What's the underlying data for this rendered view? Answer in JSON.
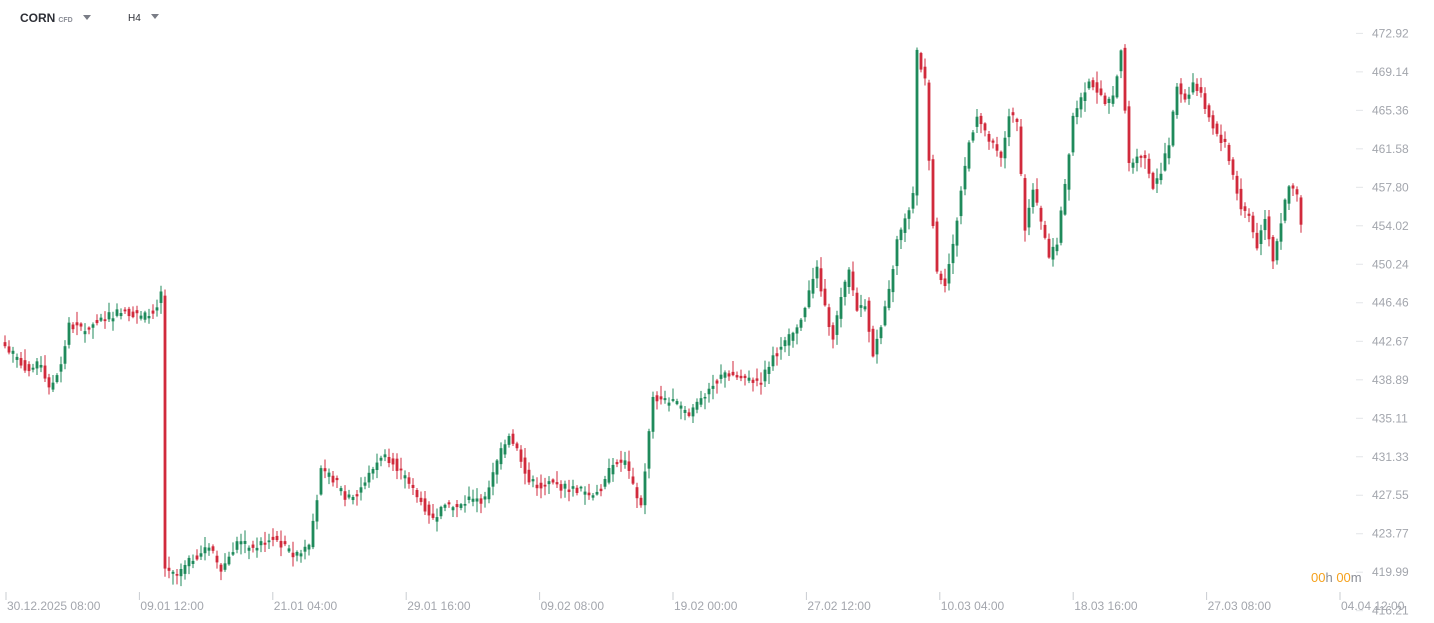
{
  "toolbar": {
    "symbol": "CORN",
    "symbol_type": "CFD",
    "timeframe": "H4"
  },
  "countdown": {
    "hours": "00",
    "h_unit": "h",
    "minutes": "00",
    "m_unit": "m"
  },
  "colors": {
    "up": "#1f8a5b",
    "down": "#d12a3c",
    "axis_text": "#a3a6ad",
    "grid": "#e3e5e8",
    "accent": "#f5a11c"
  },
  "chart_data": {
    "type": "candlestick",
    "y_ticks": [
      472.92,
      469.14,
      465.36,
      461.58,
      457.8,
      454.02,
      450.24,
      446.46,
      442.67,
      438.89,
      435.11,
      431.33,
      427.55,
      423.77,
      419.99,
      416.21
    ],
    "y_tick_labels": [
      "472.92",
      "469.14",
      "465.36",
      "461.58",
      "457.80",
      "454.02",
      "450.24",
      "446.46",
      "442.67",
      "438.89",
      "435.11",
      "431.33",
      "427.55",
      "423.77",
      "419.99",
      "416.21"
    ],
    "ylim": [
      415.0,
      476.2
    ],
    "x_tick_labels": [
      "30.12.2025 08:00",
      "09.01 12:00",
      "21.01 04:00",
      "29.01 16:00",
      "09.02 08:00",
      "19.02 00:00",
      "27.02 12:00",
      "10.03 04:00",
      "18.03 16:00",
      "27.03 08:00",
      "04.04 12:00"
    ],
    "anchors": [
      [
        0,
        442.2
      ],
      [
        6,
        439.8
      ],
      [
        9,
        440.5
      ],
      [
        11,
        437.8
      ],
      [
        14,
        440.5
      ],
      [
        16,
        444.2
      ],
      [
        20,
        443.8
      ],
      [
        26,
        445.2
      ],
      [
        30,
        445.8
      ],
      [
        34,
        445.0
      ],
      [
        37,
        445.5
      ],
      [
        39,
        447.2
      ],
      [
        40,
        420.0
      ],
      [
        43,
        419.6
      ],
      [
        47,
        421.4
      ],
      [
        51,
        422.5
      ],
      [
        54,
        420.2
      ],
      [
        58,
        423.0
      ],
      [
        62,
        422.3
      ],
      [
        67,
        423.5
      ],
      [
        72,
        421.6
      ],
      [
        76,
        422.7
      ],
      [
        79,
        429.8
      ],
      [
        82,
        429.2
      ],
      [
        85,
        427.5
      ],
      [
        88,
        427.8
      ],
      [
        91,
        429.5
      ],
      [
        94,
        431.5
      ],
      [
        97,
        431.0
      ],
      [
        101,
        428.5
      ],
      [
        104,
        427.0
      ],
      [
        107,
        425.2
      ],
      [
        110,
        426.8
      ],
      [
        113,
        426.2
      ],
      [
        117,
        427.5
      ],
      [
        120,
        427.0
      ],
      [
        123,
        430.8
      ],
      [
        126,
        433.6
      ],
      [
        129,
        431.2
      ],
      [
        131,
        428.9
      ],
      [
        134,
        428.5
      ],
      [
        137,
        428.6
      ],
      [
        141,
        428.2
      ],
      [
        144,
        428.1
      ],
      [
        146,
        427.5
      ],
      [
        149,
        428.2
      ],
      [
        152,
        430.6
      ],
      [
        155,
        430.8
      ],
      [
        157,
        428.3
      ],
      [
        159,
        426.5
      ],
      [
        162,
        437.2
      ],
      [
        165,
        436.8
      ],
      [
        168,
        436.5
      ],
      [
        171,
        435.3
      ],
      [
        174,
        437.2
      ],
      [
        177,
        438.5
      ],
      [
        180,
        439.6
      ],
      [
        183,
        439.2
      ],
      [
        186,
        438.8
      ],
      [
        189,
        438.8
      ],
      [
        192,
        441.2
      ],
      [
        195,
        442.5
      ],
      [
        198,
        443.8
      ],
      [
        201,
        447.5
      ],
      [
        203,
        449.8
      ],
      [
        205,
        445.8
      ],
      [
        207,
        443.2
      ],
      [
        209,
        446.8
      ],
      [
        211,
        449.5
      ],
      [
        213,
        445.8
      ],
      [
        215,
        446.5
      ],
      [
        217,
        441.5
      ],
      [
        219,
        444.0
      ],
      [
        221,
        447.5
      ],
      [
        223,
        452.5
      ],
      [
        225,
        454.5
      ],
      [
        227,
        457.0
      ],
      [
        228,
        471.0
      ],
      [
        230,
        468.2
      ],
      [
        231,
        460.8
      ],
      [
        232,
        454.2
      ],
      [
        233,
        449.5
      ],
      [
        235,
        448.5
      ],
      [
        237,
        452.0
      ],
      [
        239,
        457.5
      ],
      [
        241,
        462.2
      ],
      [
        243,
        465.0
      ],
      [
        245,
        463.0
      ],
      [
        247,
        461.8
      ],
      [
        249,
        460.5
      ],
      [
        251,
        465.0
      ],
      [
        253,
        464.0
      ],
      [
        255,
        453.8
      ],
      [
        257,
        457.5
      ],
      [
        259,
        454.3
      ],
      [
        261,
        450.8
      ],
      [
        263,
        452.5
      ],
      [
        265,
        457.8
      ],
      [
        267,
        464.8
      ],
      [
        269,
        466.5
      ],
      [
        271,
        468.5
      ],
      [
        273,
        467.3
      ],
      [
        275,
        466.0
      ],
      [
        277,
        466.5
      ],
      [
        279,
        471.5
      ],
      [
        281,
        459.8
      ],
      [
        283,
        461.0
      ],
      [
        285,
        460.5
      ],
      [
        287,
        458.0
      ],
      [
        289,
        459.5
      ],
      [
        291,
        462.0
      ],
      [
        293,
        467.8
      ],
      [
        295,
        466.5
      ],
      [
        297,
        468.0
      ],
      [
        299,
        466.8
      ],
      [
        301,
        464.8
      ],
      [
        303,
        463.0
      ],
      [
        305,
        462.0
      ],
      [
        307,
        459.0
      ],
      [
        309,
        455.8
      ],
      [
        311,
        455.0
      ],
      [
        313,
        452.0
      ],
      [
        315,
        455.0
      ],
      [
        317,
        450.8
      ],
      [
        319,
        454.5
      ],
      [
        321,
        457.8
      ],
      [
        323,
        457.0
      ],
      [
        324,
        454.0
      ]
    ]
  }
}
